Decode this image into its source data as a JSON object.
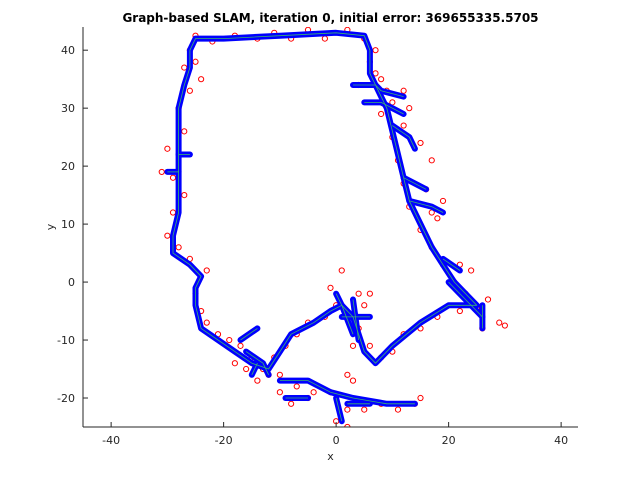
{
  "chart_data": {
    "type": "scatter",
    "title": "Graph-based SLAM, iteration 0, initial error: 369655335.5705",
    "xlabel": "x",
    "ylabel": "y",
    "xlim": [
      -45,
      43
    ],
    "ylim": [
      -25,
      44
    ],
    "xticks": [
      -40,
      -20,
      0,
      20,
      40
    ],
    "yticks": [
      -20,
      -10,
      0,
      10,
      20,
      30,
      40
    ],
    "grid": false,
    "legend": "none",
    "colors": {
      "trajectory": "#0000ff",
      "edges": "#3cb371",
      "landmarks": "#ff0000",
      "axis": "#262626"
    },
    "series": [
      {
        "style": "blue path",
        "segments": [
          [
            [
              -26,
              40
            ],
            [
              -25,
              42
            ],
            [
              -20,
              42
            ],
            [
              -10,
              42.5
            ],
            [
              0,
              43
            ],
            [
              5,
              42.5
            ],
            [
              6,
              40
            ],
            [
              6,
              36
            ],
            [
              7,
              34
            ],
            [
              9,
              30
            ],
            [
              10,
              26
            ],
            [
              11,
              22
            ],
            [
              12,
              18
            ],
            [
              13,
              14
            ],
            [
              15,
              10
            ],
            [
              17,
              6
            ],
            [
              19,
              3
            ],
            [
              21,
              0
            ],
            [
              23,
              -2
            ],
            [
              25,
              -4
            ],
            [
              20,
              -4
            ],
            [
              15,
              -7
            ],
            [
              10,
              -11
            ],
            [
              7,
              -14
            ],
            [
              5,
              -12
            ],
            [
              4,
              -9
            ],
            [
              3,
              -6
            ],
            [
              1,
              -4
            ],
            [
              -1,
              -5
            ],
            [
              -4,
              -7
            ],
            [
              -8,
              -9
            ],
            [
              -10,
              -12
            ],
            [
              -12,
              -15
            ],
            [
              -15,
              -14
            ],
            [
              -18,
              -12
            ],
            [
              -21,
              -10
            ],
            [
              -24,
              -8
            ],
            [
              -25,
              -4
            ],
            [
              -25,
              -1
            ],
            [
              -24,
              1
            ],
            [
              -26,
              3
            ],
            [
              -29,
              5
            ],
            [
              -29,
              8
            ],
            [
              -28,
              12
            ],
            [
              -28,
              16
            ],
            [
              -28,
              20
            ],
            [
              -28,
              25
            ],
            [
              -28,
              30
            ],
            [
              -27,
              34
            ],
            [
              -26,
              37
            ],
            [
              -26,
              40
            ]
          ],
          [
            [
              3,
              34
            ],
            [
              7,
              34
            ],
            [
              8,
              33
            ],
            [
              12,
              32
            ]
          ],
          [
            [
              5,
              31
            ],
            [
              8,
              31
            ],
            [
              10,
              30
            ],
            [
              12,
              29
            ]
          ],
          [
            [
              10,
              27
            ],
            [
              13,
              25
            ],
            [
              14,
              23
            ]
          ],
          [
            [
              12,
              18
            ],
            [
              16,
              16
            ]
          ],
          [
            [
              13,
              14
            ],
            [
              17,
              13
            ],
            [
              19,
              12
            ]
          ],
          [
            [
              19,
              4
            ],
            [
              22,
              2
            ]
          ],
          [
            [
              20,
              0
            ],
            [
              26,
              -6
            ]
          ],
          [
            [
              26,
              -4
            ],
            [
              26,
              -8
            ]
          ],
          [
            [
              -30,
              19
            ],
            [
              -28,
              19
            ]
          ],
          [
            [
              -28,
              22
            ],
            [
              -26,
              22
            ]
          ],
          [
            [
              -17,
              -10
            ],
            [
              -14,
              -8
            ]
          ],
          [
            [
              -16,
              -12
            ],
            [
              -13,
              -14
            ],
            [
              -12,
              -16
            ]
          ],
          [
            [
              -14,
              -14
            ],
            [
              -15,
              -16
            ]
          ],
          [
            [
              -10,
              -17
            ],
            [
              -5,
              -17
            ],
            [
              -1,
              -19
            ],
            [
              3,
              -20
            ],
            [
              9,
              -21
            ],
            [
              14,
              -21
            ]
          ],
          [
            [
              -9,
              -20
            ],
            [
              -5,
              -20
            ]
          ],
          [
            [
              0,
              -20
            ],
            [
              1,
              -24
            ]
          ],
          [
            [
              2,
              -21
            ],
            [
              6,
              -21
            ]
          ],
          [
            [
              3,
              -9
            ],
            [
              1,
              -4
            ],
            [
              0,
              -2
            ]
          ],
          [
            [
              3,
              -3
            ],
            [
              4,
              -10
            ]
          ],
          [
            [
              1,
              -6
            ],
            [
              6,
              -6
            ]
          ]
        ]
      },
      {
        "style": "red circles",
        "points": [
          [
            -26,
            40
          ],
          [
            -25,
            42.5
          ],
          [
            -22,
            41.5
          ],
          [
            -18,
            42.5
          ],
          [
            -14,
            42
          ],
          [
            -11,
            43
          ],
          [
            -8,
            42
          ],
          [
            -5,
            43.5
          ],
          [
            -2,
            42
          ],
          [
            2,
            43.5
          ],
          [
            5,
            42
          ],
          [
            7,
            40
          ],
          [
            6,
            38
          ],
          [
            7,
            36
          ],
          [
            9,
            33
          ],
          [
            8,
            29
          ],
          [
            10,
            25
          ],
          [
            11,
            21
          ],
          [
            12,
            17
          ],
          [
            13,
            13
          ],
          [
            15,
            9
          ],
          [
            17,
            6
          ],
          [
            19,
            3
          ],
          [
            21,
            0
          ],
          [
            23,
            -2
          ],
          [
            25,
            -4.5
          ],
          [
            27,
            -3
          ],
          [
            26,
            -8
          ],
          [
            29,
            -7
          ],
          [
            30,
            -7.5
          ],
          [
            22,
            -5
          ],
          [
            18,
            -6
          ],
          [
            15,
            -8
          ],
          [
            12,
            -9
          ],
          [
            10,
            -12
          ],
          [
            8,
            -13
          ],
          [
            6,
            -11
          ],
          [
            4,
            -8
          ],
          [
            2,
            -6
          ],
          [
            0,
            -4
          ],
          [
            -2,
            -6
          ],
          [
            -5,
            -7
          ],
          [
            -7,
            -9
          ],
          [
            -9,
            -11
          ],
          [
            -11,
            -13
          ],
          [
            -13,
            -15
          ],
          [
            -15,
            -13
          ],
          [
            -17,
            -11
          ],
          [
            -19,
            -10
          ],
          [
            -21,
            -9
          ],
          [
            -23,
            -7
          ],
          [
            -24,
            -5
          ],
          [
            -25,
            -2
          ],
          [
            -23,
            2
          ],
          [
            -26,
            4
          ],
          [
            -28,
            6
          ],
          [
            -30,
            8
          ],
          [
            -29,
            12
          ],
          [
            -27,
            15
          ],
          [
            -29,
            18
          ],
          [
            -31,
            19
          ],
          [
            -30,
            23
          ],
          [
            -27,
            26
          ],
          [
            -28,
            30
          ],
          [
            -26,
            33
          ],
          [
            -24,
            35
          ],
          [
            -27,
            37
          ],
          [
            -25,
            38
          ],
          [
            4,
            34
          ],
          [
            8,
            35
          ],
          [
            12,
            33
          ],
          [
            10,
            31
          ],
          [
            13,
            30
          ],
          [
            12,
            27
          ],
          [
            15,
            24
          ],
          [
            17,
            21
          ],
          [
            16,
            16
          ],
          [
            19,
            14
          ],
          [
            18,
            11
          ],
          [
            17,
            12
          ],
          [
            22,
            3
          ],
          [
            24,
            2
          ],
          [
            -10,
            -19
          ],
          [
            -7,
            -18
          ],
          [
            -4,
            -19
          ],
          [
            -1,
            -19
          ],
          [
            2,
            -22
          ],
          [
            5,
            -22
          ],
          [
            8,
            -21
          ],
          [
            11,
            -22
          ],
          [
            14,
            -21
          ],
          [
            15,
            -20
          ],
          [
            -8,
            -21
          ],
          [
            -5,
            -20
          ],
          [
            -10,
            -16
          ],
          [
            -12,
            -16
          ],
          [
            -14,
            -17
          ],
          [
            -16,
            -15
          ],
          [
            -18,
            -14
          ],
          [
            2,
            -25
          ],
          [
            0,
            -24
          ],
          [
            3,
            -11
          ],
          [
            5,
            -4
          ],
          [
            6,
            -2
          ],
          [
            -1,
            -1
          ],
          [
            1,
            2
          ],
          [
            4,
            -2
          ],
          [
            2,
            -16
          ],
          [
            3,
            -17
          ]
        ]
      }
    ]
  }
}
